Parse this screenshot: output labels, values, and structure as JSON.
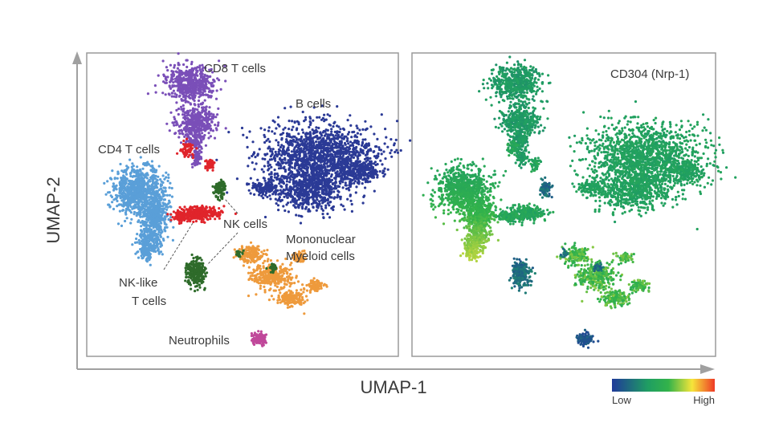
{
  "figure": {
    "xaxis_label": "UMAP-1",
    "yaxis_label": "UMAP-2",
    "axis_color": "#a0a0a0",
    "panel_border_color": "#9a9a9a"
  },
  "chart_data": [
    {
      "type": "scatter",
      "panel": "left",
      "title": "",
      "xlabel": "UMAP-1",
      "ylabel": "UMAP-2",
      "grid": false,
      "legend": "none (cluster labels annotated directly on the plot)",
      "clusters": [
        {
          "name": "CD8 T cells",
          "color": "#7a4fb8"
        },
        {
          "name": "B cells",
          "color": "#2b3a96"
        },
        {
          "name": "CD4 T cells",
          "color": "#5a9fd8"
        },
        {
          "name": "NK cells",
          "color": "#e0242b"
        },
        {
          "name": "Mononuclear Myeloid cells",
          "color": "#ee9a3c"
        },
        {
          "name": "NK-like T cells",
          "color": "#2e6b2a"
        },
        {
          "name": "Neutrophils",
          "color": "#c0489a"
        }
      ],
      "annotations": [
        {
          "id": "cd8",
          "text": "CD8 T cells"
        },
        {
          "id": "bcells",
          "text": "B cells"
        },
        {
          "id": "cd4",
          "text": "CD4 T cells"
        },
        {
          "id": "nk",
          "text": "NK cells"
        },
        {
          "id": "myeloid_1",
          "text": "Mononuclear"
        },
        {
          "id": "myeloid_2",
          "text": "Myeloid cells"
        },
        {
          "id": "nklike_1",
          "text": "NK-like"
        },
        {
          "id": "nklike_2",
          "text": "T cells"
        },
        {
          "id": "neutro",
          "text": "Neutrophils"
        }
      ]
    },
    {
      "type": "scatter",
      "panel": "right",
      "title": "CD304 (Nrp-1)",
      "grid": false,
      "color_scale": {
        "low_label": "Low",
        "high_label": "High",
        "colors": [
          "#1f3a9a",
          "#1f9e62",
          "#33b34a",
          "#f6e53a",
          "#ee3a26"
        ]
      }
    }
  ]
}
